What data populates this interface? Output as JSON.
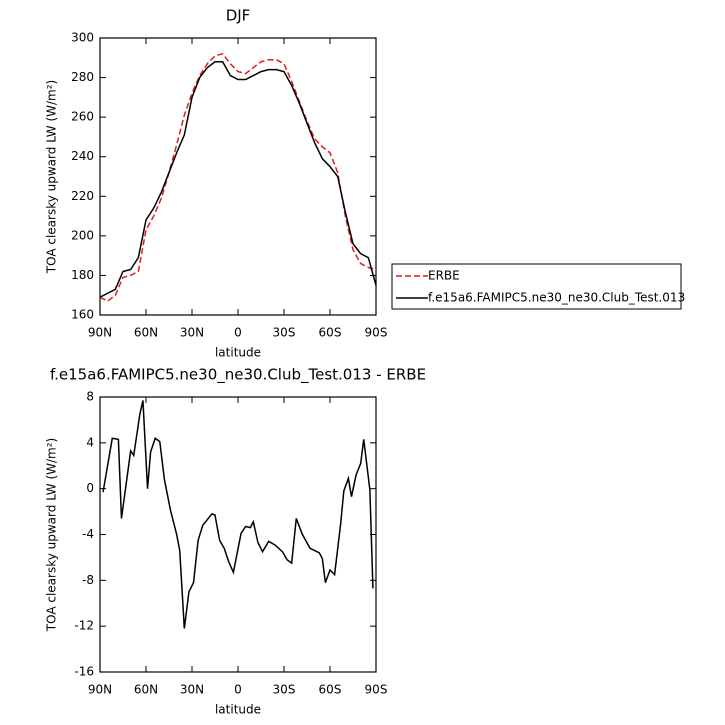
{
  "chart_data": [
    {
      "type": "line",
      "title": "DJF",
      "xlabel": "latitude",
      "ylabel": "TOA clearsky upward LW (W/m²)",
      "x": [
        90,
        85,
        80,
        75,
        70,
        65,
        60,
        55,
        50,
        45,
        40,
        35,
        30,
        25,
        20,
        15,
        10,
        5,
        0,
        -5,
        -10,
        -15,
        -20,
        -25,
        -30,
        -35,
        -40,
        -45,
        -50,
        -55,
        -60,
        -65,
        -70,
        -75,
        -80,
        -85,
        -90
      ],
      "series": [
        {
          "name": "ERBE",
          "color": "#e41a1c",
          "dash": true,
          "values": [
            169,
            167,
            170,
            179,
            180,
            182,
            203,
            210,
            219,
            232,
            246,
            261,
            272,
            281,
            287,
            291,
            292,
            287,
            283,
            282,
            285,
            288,
            289,
            289,
            287,
            278,
            268,
            258,
            249,
            245,
            242,
            232,
            210,
            193,
            186,
            184,
            183
          ]
        },
        {
          "name": "f.e15a6.FAMIPC5.ne30_ne30.Club_Test.013",
          "color": "#000000",
          "dash": false,
          "values": [
            169,
            171,
            173,
            182,
            183,
            189,
            208,
            214,
            222,
            232,
            242,
            251,
            270,
            280,
            285,
            288,
            288,
            281,
            279,
            279,
            281,
            283,
            284,
            284,
            283,
            276,
            267,
            257,
            247,
            239,
            235,
            230,
            212,
            196,
            191,
            189,
            175
          ]
        }
      ],
      "xlim": [
        90,
        -90
      ],
      "xticks": [
        {
          "value": 90,
          "label": "90N"
        },
        {
          "value": 60,
          "label": "60N"
        },
        {
          "value": 30,
          "label": "30N"
        },
        0,
        {
          "value": -30,
          "label": "30S"
        },
        {
          "value": -60,
          "label": "60S"
        },
        {
          "value": -90,
          "label": "90S"
        }
      ],
      "ylim": [
        160,
        300
      ],
      "yticks": [
        160,
        180,
        200,
        220,
        240,
        260,
        280,
        300
      ],
      "legend": "right"
    },
    {
      "type": "line",
      "title": "f.e15a6.FAMIPC5.ne30_ne30.Club_Test.013 - ERBE",
      "xlabel": "latitude",
      "ylabel": "TOA clearsky upward LW (W/m²)",
      "x": [
        88,
        82,
        78,
        76,
        70,
        68,
        64,
        62,
        59,
        57,
        54,
        51,
        48,
        44,
        40,
        38,
        35,
        32,
        29,
        26,
        23,
        17,
        15,
        12,
        9,
        6,
        3,
        -2,
        -5,
        -8,
        -10,
        -13,
        -16,
        -20,
        -24,
        -29,
        -32,
        -35,
        -38,
        -42,
        -47,
        -50,
        -53,
        -55,
        -57,
        -60,
        -63,
        -67,
        -69,
        -72,
        -74,
        -77,
        -80,
        -82,
        -86,
        -88
      ],
      "values": [
        -0.3,
        4.4,
        4.3,
        -2.6,
        3.3,
        2.9,
        6.5,
        7.7,
        0,
        3.2,
        4.4,
        4.1,
        0.8,
        -1.9,
        -4.0,
        -5.4,
        -12.2,
        -9,
        -8.2,
        -4.5,
        -3.2,
        -2.2,
        -2.3,
        -4.5,
        -5.2,
        -6.4,
        -7.3,
        -3.9,
        -3.3,
        -3.4,
        -2.9,
        -4.7,
        -5.5,
        -4.6,
        -4.9,
        -5.5,
        -6.2,
        -6.5,
        -2.6,
        -4.0,
        -5.2,
        -5.4,
        -5.6,
        -6.1,
        -8.2,
        -7.1,
        -7.5,
        -3.0,
        -0.2,
        0.9,
        -0.7,
        1.2,
        2.2,
        4.3,
        -0.1,
        -8.7
      ],
      "color": "#000000",
      "xlim": [
        90,
        -90
      ],
      "xticks": [
        {
          "value": 90,
          "label": "90N"
        },
        {
          "value": 60,
          "label": "60N"
        },
        {
          "value": 30,
          "label": "30N"
        },
        0,
        {
          "value": -30,
          "label": "30S"
        },
        {
          "value": -60,
          "label": "60S"
        },
        {
          "value": -90,
          "label": "90S"
        }
      ],
      "ylim": [
        -16,
        8
      ],
      "yticks": [
        -16,
        -12,
        -8,
        -4,
        0,
        4,
        8
      ]
    }
  ]
}
